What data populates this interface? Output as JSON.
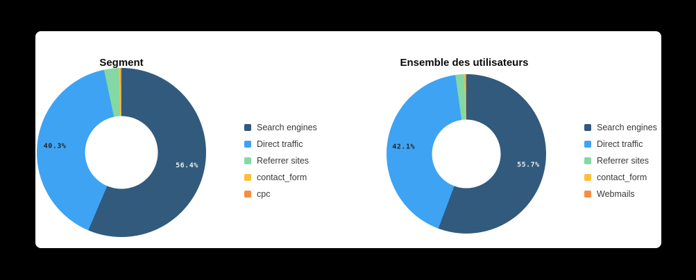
{
  "page": {
    "background_color": "#000000",
    "card_color": "#ffffff"
  },
  "chart_data": [
    {
      "type": "pie",
      "subtype": "donut",
      "title": "Segment",
      "legend_position": "right",
      "series": [
        {
          "label": "Search engines",
          "value": 56.4,
          "color": "#315a7d",
          "data_label": "56.4%",
          "data_label_color": "#e9edf0"
        },
        {
          "label": "Direct traffic",
          "value": 40.3,
          "color": "#3ea3f2",
          "data_label": "40.3%",
          "data_label_color": "#262626"
        },
        {
          "label": "Referrer sites",
          "value": 2.8,
          "color": "#84d8a4"
        },
        {
          "label": "contact_form",
          "value": 0.3,
          "color": "#fcbf38"
        },
        {
          "label": "cpc",
          "value": 0.2,
          "color": "#f78c42"
        }
      ]
    },
    {
      "type": "pie",
      "subtype": "donut",
      "title": "Ensemble des utilisateurs",
      "legend_position": "right",
      "series": [
        {
          "label": "Search engines",
          "value": 55.7,
          "color": "#315a7d",
          "data_label": "55.7%",
          "data_label_color": "#e9edf0"
        },
        {
          "label": "Direct traffic",
          "value": 42.1,
          "color": "#3ea3f2",
          "data_label": "42.1%",
          "data_label_color": "#262626"
        },
        {
          "label": "Referrer sites",
          "value": 1.8,
          "color": "#84d8a4"
        },
        {
          "label": "contact_form",
          "value": 0.2,
          "color": "#fcbf38"
        },
        {
          "label": "Webmails",
          "value": 0.2,
          "color": "#f78c42"
        }
      ]
    }
  ]
}
